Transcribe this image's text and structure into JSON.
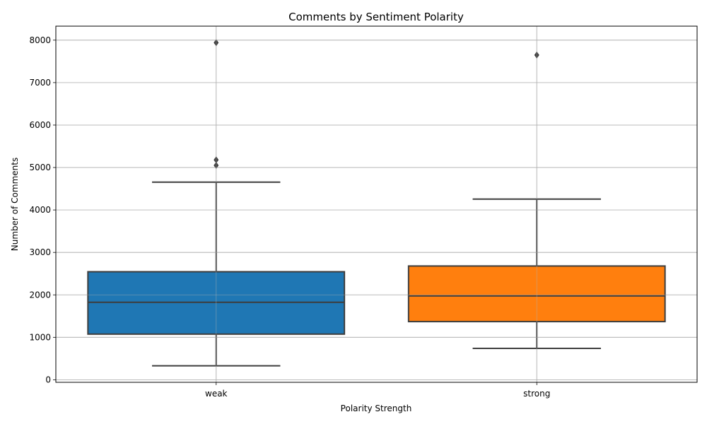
{
  "chart_data": {
    "type": "box",
    "title": "Comments by Sentiment Polarity",
    "xlabel": "Polarity Strength",
    "ylabel": "Number of Comments",
    "categories": [
      "weak",
      "strong"
    ],
    "ylim": [
      -60,
      8330
    ],
    "yticks": [
      0,
      1000,
      2000,
      3000,
      4000,
      5000,
      6000,
      7000,
      8000
    ],
    "grid": true,
    "boxes": [
      {
        "name": "weak",
        "color": "#1f77b4",
        "whisker_low": 330,
        "q1": 1075,
        "median": 1825,
        "q3": 2545,
        "whisker_high": 4655,
        "outliers": [
          5050,
          5180,
          7940
        ]
      },
      {
        "name": "strong",
        "color": "#ff7f0e",
        "whisker_low": 740,
        "q1": 1370,
        "median": 1975,
        "q3": 2680,
        "whisker_high": 4255,
        "outliers": [
          7650
        ]
      }
    ]
  }
}
